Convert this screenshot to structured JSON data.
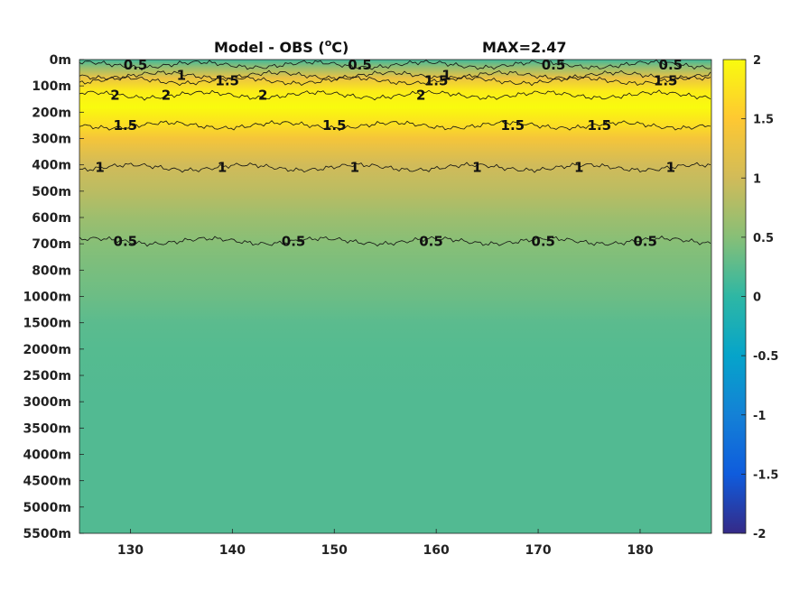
{
  "chart_data": {
    "type": "heatmap",
    "title_parts": [
      "Model - OBS (",
      "o",
      "C)"
    ],
    "max_label": "MAX=2.47",
    "xlabel": "",
    "ylabel": "",
    "xlim": [
      125,
      187
    ],
    "x_ticks": [
      "130",
      "140",
      "150",
      "160",
      "170",
      "180"
    ],
    "x_tick_values": [
      130,
      140,
      150,
      160,
      170,
      180
    ],
    "y_ticks": [
      "0m",
      "100m",
      "200m",
      "300m",
      "400m",
      "500m",
      "600m",
      "700m",
      "800m",
      "1000m",
      "1500m",
      "2000m",
      "2500m",
      "3000m",
      "3500m",
      "4000m",
      "4500m",
      "5000m",
      "5500m"
    ],
    "y_tick_depths": [
      0,
      100,
      200,
      300,
      400,
      500,
      600,
      700,
      800,
      1000,
      1500,
      2000,
      2500,
      3000,
      3500,
      4000,
      4500,
      5000,
      5500
    ],
    "colorbar": {
      "range": [
        -2,
        2
      ],
      "ticks": [
        "2",
        "1.5",
        "1",
        "0.5",
        "0",
        "-0.5",
        "-1",
        "-1.5",
        "-2"
      ],
      "tick_values": [
        2,
        1.5,
        1,
        0.5,
        0,
        -0.5,
        -1,
        -1.5,
        -2
      ],
      "colormap": "parula"
    },
    "colormap_stops": [
      "#352a87",
      "#0f5cdd",
      "#1481d6",
      "#06a4ca",
      "#2eb7a4",
      "#87bf77",
      "#d1bb59",
      "#fec832",
      "#f9fb0e"
    ],
    "depth_profile": [
      {
        "depth": 0,
        "value": 0.1
      },
      {
        "depth": 30,
        "value": 0.6
      },
      {
        "depth": 70,
        "value": 1.3
      },
      {
        "depth": 120,
        "value": 1.85
      },
      {
        "depth": 180,
        "value": 2.0
      },
      {
        "depth": 240,
        "value": 1.75
      },
      {
        "depth": 300,
        "value": 1.4
      },
      {
        "depth": 400,
        "value": 1.0
      },
      {
        "depth": 500,
        "value": 0.85
      },
      {
        "depth": 600,
        "value": 0.65
      },
      {
        "depth": 700,
        "value": 0.5
      },
      {
        "depth": 800,
        "value": 0.42
      },
      {
        "depth": 1000,
        "value": 0.35
      },
      {
        "depth": 1500,
        "value": 0.25
      },
      {
        "depth": 2000,
        "value": 0.22
      },
      {
        "depth": 3000,
        "value": 0.2
      },
      {
        "depth": 5500,
        "value": 0.2
      }
    ],
    "contours": [
      {
        "level": "0.5",
        "depth": 20,
        "labels_x": [
          130.5,
          152.5,
          171.5,
          183
        ]
      },
      {
        "level": "1",
        "depth": 60,
        "labels_x": [
          135,
          161
        ]
      },
      {
        "level": "1.5",
        "depth": 80,
        "labels_x": [
          139.5,
          160,
          182.5
        ]
      },
      {
        "level": "2",
        "depth": 135,
        "labels_x": [
          128.5,
          133.5,
          143,
          158.5
        ]
      },
      {
        "level": "1.5",
        "depth": 250,
        "labels_x": [
          129.5,
          150,
          167.5,
          176
        ]
      },
      {
        "level": "1",
        "depth": 410,
        "labels_x": [
          127,
          139,
          152,
          164,
          174,
          183
        ]
      },
      {
        "level": "0.5",
        "depth": 690,
        "labels_x": [
          129.5,
          146,
          159.5,
          170.5,
          180.5
        ]
      }
    ]
  }
}
